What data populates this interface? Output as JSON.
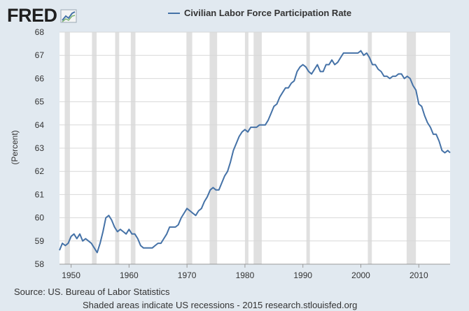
{
  "brand": {
    "logo_text": "FRED",
    "logo_icon": "trend-chart-icon"
  },
  "colors": {
    "series": "#4572a7",
    "recession": "#e0e0e0",
    "grid": "#d8d8d8",
    "plot_bg": "#ffffff",
    "page_bg": "#e1e9f0"
  },
  "footer": {
    "source": "Source: US. Bureau of Labor Statistics",
    "note": "Shaded areas indicate US recessions - 2015 research.stlouisfed.org"
  },
  "chart_data": {
    "type": "line",
    "title": "",
    "xlabel": "",
    "ylabel": "(Percent)",
    "xlim": [
      1948,
      2015.4
    ],
    "ylim": [
      58,
      68
    ],
    "x_ticks": [
      "1950",
      "1960",
      "1970",
      "1980",
      "1990",
      "2000",
      "2010"
    ],
    "y_ticks": [
      "58",
      "59",
      "60",
      "61",
      "62",
      "63",
      "64",
      "65",
      "66",
      "67",
      "68"
    ],
    "grid": true,
    "legend": "top-center",
    "recessions": [
      [
        1948.9,
        1949.8
      ],
      [
        1953.6,
        1954.4
      ],
      [
        1957.6,
        1958.3
      ],
      [
        1960.3,
        1961.1
      ],
      [
        1969.9,
        1970.9
      ],
      [
        1973.9,
        1975.2
      ],
      [
        1980.0,
        1980.6
      ],
      [
        1981.5,
        1982.9
      ],
      [
        1990.6,
        1991.2
      ],
      [
        2001.2,
        2001.9
      ],
      [
        2007.9,
        2009.5
      ]
    ],
    "series": [
      {
        "name": "Civilian Labor Force Participation Rate",
        "points": [
          [
            1948.0,
            58.6
          ],
          [
            1948.5,
            58.9
          ],
          [
            1949.0,
            58.8
          ],
          [
            1949.5,
            58.9
          ],
          [
            1950.0,
            59.2
          ],
          [
            1950.5,
            59.3
          ],
          [
            1951.0,
            59.1
          ],
          [
            1951.5,
            59.3
          ],
          [
            1952.0,
            59.0
          ],
          [
            1952.5,
            59.1
          ],
          [
            1953.0,
            59.0
          ],
          [
            1953.5,
            58.9
          ],
          [
            1954.0,
            58.7
          ],
          [
            1954.5,
            58.5
          ],
          [
            1955.0,
            58.9
          ],
          [
            1955.5,
            59.4
          ],
          [
            1956.0,
            60.0
          ],
          [
            1956.5,
            60.1
          ],
          [
            1957.0,
            59.9
          ],
          [
            1957.5,
            59.6
          ],
          [
            1958.0,
            59.4
          ],
          [
            1958.5,
            59.5
          ],
          [
            1959.0,
            59.4
          ],
          [
            1959.5,
            59.3
          ],
          [
            1960.0,
            59.5
          ],
          [
            1960.5,
            59.3
          ],
          [
            1961.0,
            59.3
          ],
          [
            1961.5,
            59.1
          ],
          [
            1962.0,
            58.8
          ],
          [
            1962.5,
            58.7
          ],
          [
            1963.0,
            58.7
          ],
          [
            1963.5,
            58.7
          ],
          [
            1964.0,
            58.7
          ],
          [
            1964.5,
            58.8
          ],
          [
            1965.0,
            58.9
          ],
          [
            1965.5,
            58.9
          ],
          [
            1966.0,
            59.1
          ],
          [
            1966.5,
            59.3
          ],
          [
            1967.0,
            59.6
          ],
          [
            1967.5,
            59.6
          ],
          [
            1968.0,
            59.6
          ],
          [
            1968.5,
            59.7
          ],
          [
            1969.0,
            60.0
          ],
          [
            1969.5,
            60.2
          ],
          [
            1970.0,
            60.4
          ],
          [
            1970.5,
            60.3
          ],
          [
            1971.0,
            60.2
          ],
          [
            1971.5,
            60.1
          ],
          [
            1972.0,
            60.3
          ],
          [
            1972.5,
            60.4
          ],
          [
            1973.0,
            60.7
          ],
          [
            1973.5,
            60.9
          ],
          [
            1974.0,
            61.2
          ],
          [
            1974.5,
            61.3
          ],
          [
            1975.0,
            61.2
          ],
          [
            1975.5,
            61.2
          ],
          [
            1976.0,
            61.5
          ],
          [
            1976.5,
            61.8
          ],
          [
            1977.0,
            62.0
          ],
          [
            1977.5,
            62.4
          ],
          [
            1978.0,
            62.9
          ],
          [
            1978.5,
            63.2
          ],
          [
            1979.0,
            63.5
          ],
          [
            1979.5,
            63.7
          ],
          [
            1980.0,
            63.8
          ],
          [
            1980.5,
            63.7
          ],
          [
            1981.0,
            63.9
          ],
          [
            1981.5,
            63.9
          ],
          [
            1982.0,
            63.9
          ],
          [
            1982.5,
            64.0
          ],
          [
            1983.0,
            64.0
          ],
          [
            1983.5,
            64.0
          ],
          [
            1984.0,
            64.2
          ],
          [
            1984.5,
            64.5
          ],
          [
            1985.0,
            64.8
          ],
          [
            1985.5,
            64.9
          ],
          [
            1986.0,
            65.2
          ],
          [
            1986.5,
            65.4
          ],
          [
            1987.0,
            65.6
          ],
          [
            1987.5,
            65.6
          ],
          [
            1988.0,
            65.8
          ],
          [
            1988.5,
            65.9
          ],
          [
            1989.0,
            66.3
          ],
          [
            1989.5,
            66.5
          ],
          [
            1990.0,
            66.6
          ],
          [
            1990.5,
            66.5
          ],
          [
            1991.0,
            66.3
          ],
          [
            1991.5,
            66.2
          ],
          [
            1992.0,
            66.4
          ],
          [
            1992.5,
            66.6
          ],
          [
            1993.0,
            66.3
          ],
          [
            1993.5,
            66.3
          ],
          [
            1994.0,
            66.6
          ],
          [
            1994.5,
            66.6
          ],
          [
            1995.0,
            66.8
          ],
          [
            1995.5,
            66.6
          ],
          [
            1996.0,
            66.7
          ],
          [
            1996.5,
            66.9
          ],
          [
            1997.0,
            67.1
          ],
          [
            1997.5,
            67.1
          ],
          [
            1998.0,
            67.1
          ],
          [
            1998.5,
            67.1
          ],
          [
            1999.0,
            67.1
          ],
          [
            1999.5,
            67.1
          ],
          [
            2000.0,
            67.2
          ],
          [
            2000.5,
            67.0
          ],
          [
            2001.0,
            67.1
          ],
          [
            2001.5,
            66.9
          ],
          [
            2002.0,
            66.6
          ],
          [
            2002.5,
            66.6
          ],
          [
            2003.0,
            66.4
          ],
          [
            2003.5,
            66.3
          ],
          [
            2004.0,
            66.1
          ],
          [
            2004.5,
            66.1
          ],
          [
            2005.0,
            66.0
          ],
          [
            2005.5,
            66.1
          ],
          [
            2006.0,
            66.1
          ],
          [
            2006.5,
            66.2
          ],
          [
            2007.0,
            66.2
          ],
          [
            2007.5,
            66.0
          ],
          [
            2008.0,
            66.1
          ],
          [
            2008.5,
            66.0
          ],
          [
            2009.0,
            65.7
          ],
          [
            2009.5,
            65.5
          ],
          [
            2010.0,
            64.9
          ],
          [
            2010.5,
            64.8
          ],
          [
            2011.0,
            64.4
          ],
          [
            2011.5,
            64.1
          ],
          [
            2012.0,
            63.9
          ],
          [
            2012.5,
            63.6
          ],
          [
            2013.0,
            63.6
          ],
          [
            2013.5,
            63.3
          ],
          [
            2014.0,
            62.9
          ],
          [
            2014.5,
            62.8
          ],
          [
            2015.0,
            62.9
          ],
          [
            2015.4,
            62.8
          ]
        ]
      }
    ]
  }
}
